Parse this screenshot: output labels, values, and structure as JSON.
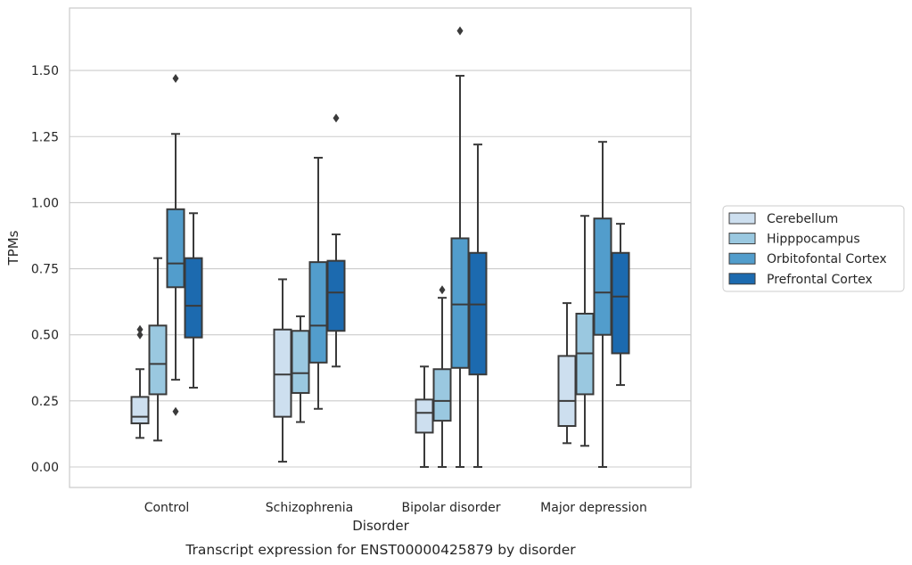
{
  "chart_data": {
    "type": "boxplot",
    "title": "Transcript expression for ENST00000425879 by disorder",
    "xlabel": "Disorder",
    "ylabel": "TPMs",
    "ylim": [
      -0.08,
      1.74
    ],
    "yticks": [
      0.0,
      0.25,
      0.5,
      0.75,
      1.0,
      1.25,
      1.5
    ],
    "ytick_labels": [
      "0.00",
      "0.25",
      "0.50",
      "0.75",
      "1.00",
      "1.25",
      "1.50"
    ],
    "grid": "horizontal",
    "legend_position": "right",
    "categories": [
      "Control",
      "Schizophrenia",
      "Bipolar disorder",
      "Major depression"
    ],
    "series": [
      {
        "name": "Cerebellum",
        "color": "#cddfef",
        "boxes": [
          {
            "whislo": 0.11,
            "q1": 0.165,
            "med": 0.19,
            "q3": 0.265,
            "whishi": 0.37,
            "fliers": [
              0.5,
              0.52
            ]
          },
          {
            "whislo": 0.02,
            "q1": 0.19,
            "med": 0.35,
            "q3": 0.52,
            "whishi": 0.71,
            "fliers": []
          },
          {
            "whislo": 0.0,
            "q1": 0.13,
            "med": 0.205,
            "q3": 0.255,
            "whishi": 0.38,
            "fliers": []
          },
          {
            "whislo": 0.09,
            "q1": 0.155,
            "med": 0.25,
            "q3": 0.42,
            "whishi": 0.62,
            "fliers": []
          }
        ]
      },
      {
        "name": "Hipppocampus",
        "color": "#9ac8e0",
        "boxes": [
          {
            "whislo": 0.1,
            "q1": 0.275,
            "med": 0.39,
            "q3": 0.535,
            "whishi": 0.79,
            "fliers": []
          },
          {
            "whislo": 0.17,
            "q1": 0.28,
            "med": 0.355,
            "q3": 0.515,
            "whishi": 0.57,
            "fliers": []
          },
          {
            "whislo": 0.0,
            "q1": 0.175,
            "med": 0.25,
            "q3": 0.37,
            "whishi": 0.64,
            "fliers": [
              0.67
            ]
          },
          {
            "whislo": 0.08,
            "q1": 0.275,
            "med": 0.43,
            "q3": 0.58,
            "whishi": 0.95,
            "fliers": []
          }
        ]
      },
      {
        "name": "Orbitofontal Cortex",
        "color": "#529dcc",
        "boxes": [
          {
            "whislo": 0.33,
            "q1": 0.68,
            "med": 0.77,
            "q3": 0.975,
            "whishi": 1.26,
            "fliers": [
              0.21,
              1.47
            ]
          },
          {
            "whislo": 0.22,
            "q1": 0.395,
            "med": 0.535,
            "q3": 0.775,
            "whishi": 1.17,
            "fliers": []
          },
          {
            "whislo": 0.0,
            "q1": 0.375,
            "med": 0.615,
            "q3": 0.865,
            "whishi": 1.48,
            "fliers": [
              1.65
            ]
          },
          {
            "whislo": 0.0,
            "q1": 0.5,
            "med": 0.66,
            "q3": 0.94,
            "whishi": 1.23,
            "fliers": []
          }
        ]
      },
      {
        "name": "Prefrontal Cortex",
        "color": "#1c6aaf",
        "boxes": [
          {
            "whislo": 0.3,
            "q1": 0.49,
            "med": 0.61,
            "q3": 0.79,
            "whishi": 0.96,
            "fliers": []
          },
          {
            "whislo": 0.38,
            "q1": 0.515,
            "med": 0.66,
            "q3": 0.78,
            "whishi": 0.88,
            "fliers": [
              1.32
            ]
          },
          {
            "whislo": 0.0,
            "q1": 0.35,
            "med": 0.615,
            "q3": 0.81,
            "whishi": 1.22,
            "fliers": []
          },
          {
            "whislo": 0.31,
            "q1": 0.43,
            "med": 0.645,
            "q3": 0.81,
            "whishi": 0.92,
            "fliers": []
          }
        ]
      }
    ]
  }
}
